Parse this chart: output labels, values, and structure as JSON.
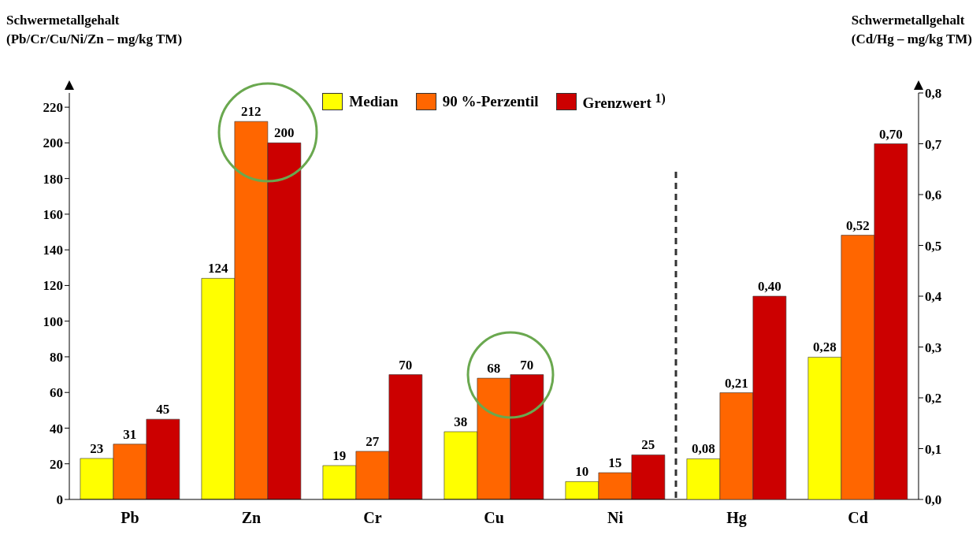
{
  "chart_data": {
    "type": "bar",
    "ylabel": "Schwermetallgehalt\n(Pb/Cr/Cu/Ni/Zn – mg/kg TM)",
    "y2label": "Schwermetallgehalt\n(Cd/Hg – mg/kg TM)",
    "categories": [
      "Pb",
      "Zn",
      "Cr",
      "Cu",
      "Ni",
      "Hg",
      "Cd"
    ],
    "series": [
      {
        "name": "Median",
        "color": "#ffff00",
        "values": [
          23,
          124,
          19,
          38,
          10,
          null,
          null
        ],
        "value_labels": [
          "23",
          "124",
          "19",
          "38",
          "10",
          null,
          null
        ]
      },
      {
        "name": "90 %-Perzentil",
        "color": "#ff6600",
        "values": [
          31,
          212,
          27,
          68,
          15,
          null,
          null
        ],
        "value_labels": [
          "31",
          "212",
          "27",
          "68",
          "15",
          null,
          null
        ]
      },
      {
        "name": "Grenzwert $^{1)}$",
        "color": "#cc0000",
        "values": [
          45,
          200,
          70,
          70,
          25,
          null,
          null
        ],
        "value_labels": [
          "45",
          "200",
          "70",
          "70",
          "25",
          null,
          null
        ]
      },
      {
        "color": "#ffff00",
        "axis": "y2",
        "values": [
          null,
          null,
          null,
          null,
          null,
          0.08,
          0.28
        ],
        "value_labels": [
          null,
          null,
          null,
          null,
          null,
          "0,08",
          "0,28"
        ]
      },
      {
        "color": "#ff6600",
        "axis": "y2",
        "values": [
          null,
          null,
          null,
          null,
          null,
          0.21,
          0.52
        ],
        "value_labels": [
          null,
          null,
          null,
          null,
          null,
          "0,21",
          "0,52"
        ]
      },
      {
        "color": "#cc0000",
        "axis": "y2",
        "values": [
          null,
          null,
          null,
          null,
          null,
          0.4,
          0.7
        ],
        "value_labels": [
          null,
          null,
          null,
          null,
          null,
          "0,40",
          "0,70"
        ]
      }
    ],
    "ylim": [
      0,
      228
    ],
    "yticks": [
      0,
      20,
      40,
      60,
      80,
      100,
      120,
      140,
      160,
      180,
      200,
      220
    ],
    "y2lim": [
      0,
      0.8
    ],
    "y2ticks": [
      {
        "value": 0,
        "label": "0,0"
      },
      {
        "value": 0.1,
        "label": "0,1"
      },
      {
        "value": 0.2,
        "label": "0,2"
      },
      {
        "value": 0.3,
        "label": "0,3"
      },
      {
        "value": 0.4,
        "label": "0,4"
      },
      {
        "value": 0.5,
        "label": "0,5"
      },
      {
        "value": 0.6,
        "label": "0,6"
      },
      {
        "value": 0.7,
        "label": "0,7"
      },
      {
        "value": 0.8,
        "label": "0,8"
      }
    ],
    "legend": "top"
  }
}
